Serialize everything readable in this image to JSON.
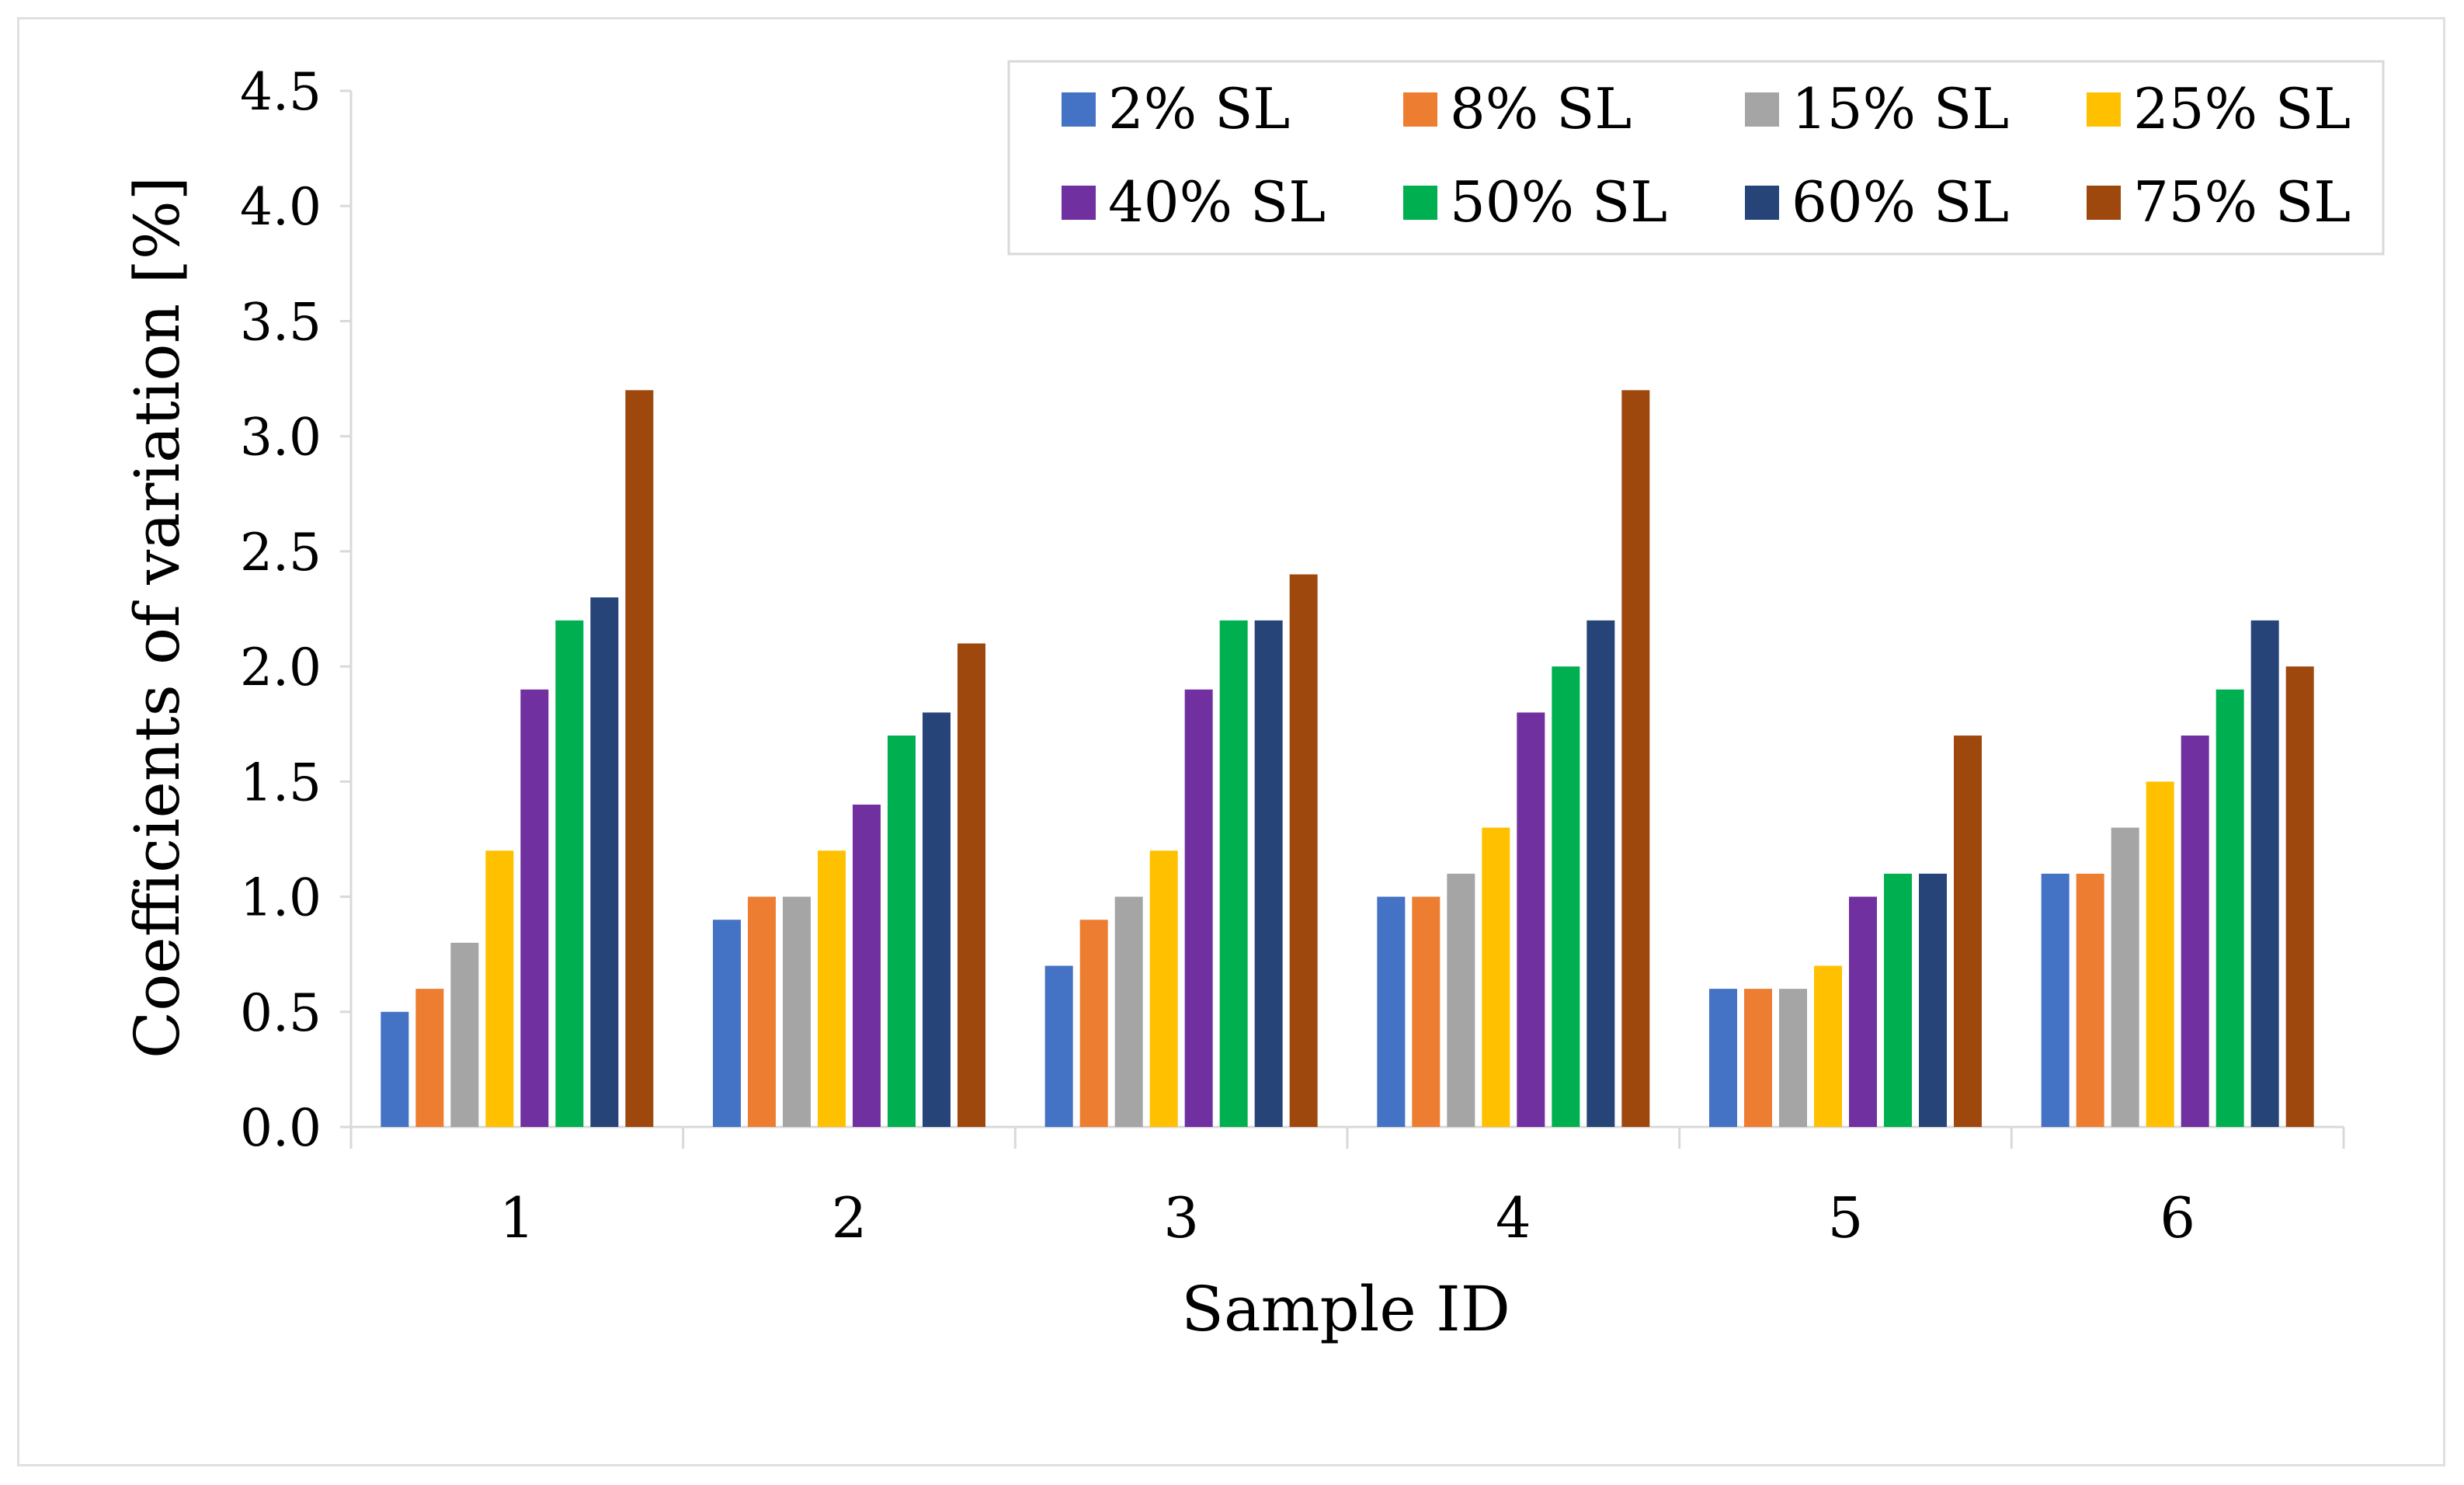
{
  "chart_data": {
    "type": "bar",
    "title": "",
    "xlabel": "Sample ID",
    "ylabel": "Coefficients of variation [%]",
    "ylim": [
      0,
      4.5
    ],
    "ytick_step": 0.5,
    "ytick_labels": [
      "0.0",
      "0.5",
      "1.0",
      "1.5",
      "2.0",
      "2.5",
      "3.0",
      "3.5",
      "4.0",
      "4.5"
    ],
    "grid": false,
    "legend_position": "top-right",
    "categories": [
      "1",
      "2",
      "3",
      "4",
      "5",
      "6"
    ],
    "series": [
      {
        "name": "2% SL",
        "color": "#4472C4",
        "values": [
          0.5,
          0.9,
          0.7,
          1.0,
          0.6,
          1.1
        ]
      },
      {
        "name": "8% SL",
        "color": "#ED7D31",
        "values": [
          0.6,
          1.0,
          0.9,
          1.0,
          0.6,
          1.1
        ]
      },
      {
        "name": "15% SL",
        "color": "#A5A5A5",
        "values": [
          0.8,
          1.0,
          1.0,
          1.1,
          0.6,
          1.3
        ]
      },
      {
        "name": "25% SL",
        "color": "#FFC000",
        "values": [
          1.2,
          1.2,
          1.2,
          1.3,
          0.7,
          1.5
        ]
      },
      {
        "name": "40% SL",
        "color": "#7030A0",
        "values": [
          1.9,
          1.4,
          1.9,
          1.8,
          1.0,
          1.7
        ]
      },
      {
        "name": "50% SL",
        "color": "#00B050",
        "values": [
          2.2,
          1.7,
          2.2,
          2.0,
          1.1,
          1.9
        ]
      },
      {
        "name": "60% SL",
        "color": "#264478",
        "values": [
          2.3,
          1.8,
          2.2,
          2.2,
          1.1,
          2.2
        ]
      },
      {
        "name": "75% SL",
        "color": "#9E480E",
        "values": [
          3.2,
          2.1,
          2.4,
          3.2,
          1.7,
          2.0
        ]
      }
    ]
  }
}
